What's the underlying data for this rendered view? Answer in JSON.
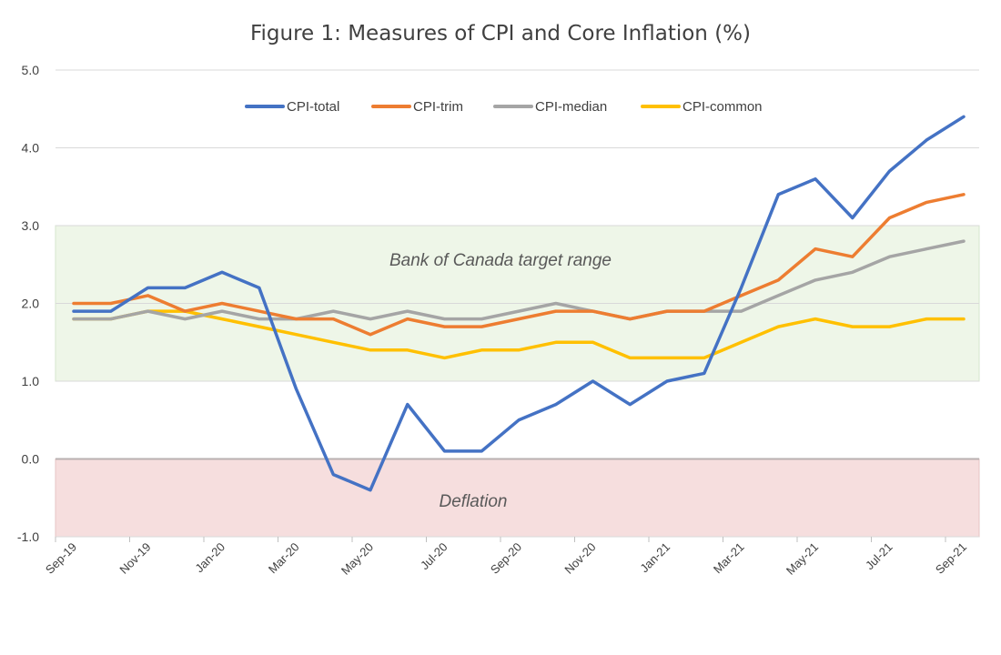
{
  "chart_data": {
    "type": "line",
    "title": "Figure 1: Measures of CPI and Core Inflation (%)",
    "xlabel": "",
    "ylabel": "",
    "ylim": [
      -1.0,
      5.0
    ],
    "yticks": [
      "5.0",
      "4.0",
      "3.0",
      "2.0",
      "1.0",
      "0.0",
      "-1.0"
    ],
    "ytick_values": [
      5,
      4,
      3,
      2,
      1,
      0,
      -1
    ],
    "months": [
      "Sep-19",
      "Oct-19",
      "Nov-19",
      "Dec-19",
      "Jan-20",
      "Feb-20",
      "Mar-20",
      "Apr-20",
      "May-20",
      "Jun-20",
      "Jul-20",
      "Aug-20",
      "Sep-20",
      "Oct-20",
      "Nov-20",
      "Dec-20",
      "Jan-21",
      "Feb-21",
      "Mar-21",
      "Apr-21",
      "May-21",
      "Jun-21",
      "Jul-21",
      "Aug-21",
      "Sep-21"
    ],
    "tick_labels": [
      "Sep-19",
      "Nov-19",
      "Jan-20",
      "Mar-20",
      "May-20",
      "Jul-20",
      "Sep-20",
      "Nov-20",
      "Jan-21",
      "Mar-21",
      "May-21",
      "Jul-21",
      "Sep-21"
    ],
    "tick_indices": [
      0,
      2,
      4,
      6,
      8,
      10,
      12,
      14,
      16,
      18,
      20,
      22,
      24
    ],
    "grid": true,
    "legend_position": "top-center",
    "bands": [
      {
        "name": "target-band",
        "label": "Bank of Canada target range",
        "from": 1.0,
        "to": 3.0,
        "color": "#eef6e8",
        "border": "#d6e6cc"
      },
      {
        "name": "deflation-band",
        "label": "Deflation",
        "from": -1.0,
        "to": 0.0,
        "color": "#f6dede",
        "border": "#e6c4c4"
      }
    ],
    "series": [
      {
        "name": "CPI-total",
        "color": "#4472c4",
        "values": [
          1.9,
          1.9,
          2.2,
          2.2,
          2.4,
          2.2,
          0.9,
          -0.2,
          -0.4,
          0.7,
          0.1,
          0.1,
          0.5,
          0.7,
          1.0,
          0.7,
          1.0,
          1.1,
          2.2,
          3.4,
          3.6,
          3.1,
          3.7,
          4.1,
          4.4
        ]
      },
      {
        "name": "CPI-trim",
        "color": "#ed7d31",
        "values": [
          2.0,
          2.0,
          2.1,
          1.9,
          2.0,
          1.9,
          1.8,
          1.8,
          1.6,
          1.8,
          1.7,
          1.7,
          1.8,
          1.9,
          1.9,
          1.8,
          1.9,
          1.9,
          2.1,
          2.3,
          2.7,
          2.6,
          3.1,
          3.3,
          3.4
        ]
      },
      {
        "name": "CPI-median",
        "color": "#a5a5a5",
        "values": [
          1.8,
          1.8,
          1.9,
          1.8,
          1.9,
          1.8,
          1.8,
          1.9,
          1.8,
          1.9,
          1.8,
          1.8,
          1.9,
          2.0,
          1.9,
          1.8,
          1.9,
          1.9,
          1.9,
          2.1,
          2.3,
          2.4,
          2.6,
          2.7,
          2.8
        ]
      },
      {
        "name": "CPI-common",
        "color": "#ffc000",
        "values": [
          1.8,
          1.8,
          1.9,
          1.9,
          1.8,
          1.7,
          1.6,
          1.5,
          1.4,
          1.4,
          1.3,
          1.4,
          1.4,
          1.5,
          1.5,
          1.3,
          1.3,
          1.3,
          1.5,
          1.7,
          1.8,
          1.7,
          1.7,
          1.8,
          1.8
        ]
      }
    ]
  }
}
